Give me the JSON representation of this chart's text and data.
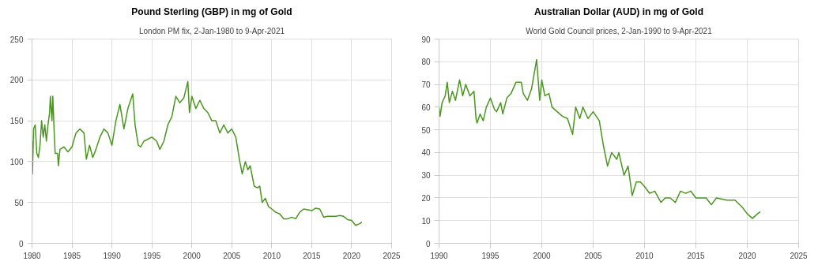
{
  "chart_data": [
    {
      "type": "line",
      "title": "Pound Sterling (GBP) in mg of Gold",
      "subtitle": "London PM fix, 2-Jan-1980 to 9-Apr-2021",
      "xlim": [
        1980,
        2025
      ],
      "xticks": [
        1980,
        1985,
        1990,
        1995,
        2000,
        2005,
        2010,
        2015,
        2020,
        2025
      ],
      "ylim": [
        0,
        250
      ],
      "yticks": [
        0,
        50,
        100,
        150,
        200,
        250
      ],
      "grid": true,
      "series": [
        {
          "color": "#4a961e",
          "x": [
            1980.0,
            1980.05,
            1980.2,
            1980.4,
            1980.6,
            1980.8,
            1981.0,
            1981.2,
            1981.4,
            1981.6,
            1981.8,
            1982.0,
            1982.2,
            1982.3,
            1982.5,
            1982.6,
            1982.8,
            1982.9,
            1983.2,
            1983.3,
            1983.5,
            1984,
            1984.5,
            1985,
            1985.5,
            1986,
            1986.5,
            1986.8,
            1987.2,
            1987.6,
            1988,
            1988.5,
            1989,
            1989.5,
            1990,
            1990.5,
            1991,
            1991.5,
            1992,
            1992.6,
            1992.9,
            1993.3,
            1993.6,
            1994,
            1995,
            1995.6,
            1996,
            1996.5,
            1997,
            1997.5,
            1998,
            1998.5,
            1999,
            1999.5,
            1999.7,
            2000,
            2000.5,
            2001,
            2001.5,
            2002,
            2002.5,
            2003,
            2003.5,
            2004,
            2004.5,
            2005,
            2005.5,
            2006,
            2006.3,
            2006.7,
            2007,
            2007.3,
            2007.8,
            2008.2,
            2008.5,
            2008.8,
            2009.2,
            2009.6,
            2010,
            2010.5,
            2011,
            2011.5,
            2012,
            2012.5,
            2013,
            2013.5,
            2014,
            2014.5,
            2015,
            2015.5,
            2016,
            2016.5,
            2017,
            2018,
            2018.5,
            2019,
            2019.5,
            2020,
            2020.5,
            2021,
            2021.27
          ],
          "values": [
            125,
            85,
            140,
            145,
            110,
            105,
            120,
            150,
            130,
            145,
            125,
            145,
            160,
            180,
            150,
            180,
            130,
            110,
            110,
            95,
            115,
            118,
            112,
            118,
            135,
            140,
            135,
            103,
            120,
            105,
            115,
            130,
            140,
            135,
            120,
            150,
            170,
            140,
            165,
            183,
            145,
            120,
            118,
            125,
            130,
            125,
            115,
            125,
            145,
            155,
            180,
            172,
            178,
            198,
            160,
            180,
            165,
            175,
            165,
            160,
            150,
            150,
            135,
            145,
            135,
            140,
            130,
            100,
            85,
            100,
            90,
            95,
            70,
            68,
            70,
            50,
            55,
            45,
            42,
            38,
            36,
            30,
            30,
            32,
            30,
            38,
            42,
            41,
            40,
            43,
            42,
            32,
            33,
            33,
            34,
            33,
            29,
            28,
            22,
            24,
            26
          ]
        }
      ]
    },
    {
      "type": "line",
      "title": "Australian Dollar (AUD) in mg of Gold",
      "subtitle": "World Gold Council prices, 2-Jan-1990 to 9-Apr-2021",
      "xlim": [
        1990,
        2025
      ],
      "xticks": [
        1990,
        1995,
        2000,
        2005,
        2010,
        2015,
        2020,
        2025
      ],
      "ylim": [
        0,
        90
      ],
      "yticks": [
        0,
        10,
        20,
        30,
        40,
        50,
        60,
        70,
        80,
        90
      ],
      "grid": true,
      "series": [
        {
          "color": "#4a961e",
          "x": [
            1990,
            1990.1,
            1990.3,
            1990.6,
            1990.8,
            1991,
            1991.3,
            1991.6,
            1992,
            1992.3,
            1992.6,
            1993,
            1993.4,
            1993.6,
            1993.7,
            1994,
            1994.3,
            1994.6,
            1995,
            1995.4,
            1995.6,
            1996,
            1996.2,
            1996.6,
            1997,
            1997.5,
            1998,
            1998.2,
            1998.6,
            1999,
            1999.5,
            1999.8,
            2000,
            2000.3,
            2000.7,
            2001,
            2001.5,
            2002,
            2002.5,
            2003,
            2003.3,
            2003.7,
            2004,
            2004.5,
            2005,
            2005.6,
            2006,
            2006.4,
            2006.8,
            2007.3,
            2007.5,
            2008,
            2008.4,
            2008.8,
            2009.2,
            2009.6,
            2010,
            2010.5,
            2011,
            2011.6,
            2012,
            2012.5,
            2013,
            2013.5,
            2014,
            2014.5,
            2015,
            2016,
            2016.5,
            2017,
            2018,
            2018.8,
            2019.5,
            2020,
            2020.5,
            2021,
            2021.27
          ],
          "values": [
            60,
            56,
            62,
            65,
            71,
            62,
            67,
            63,
            72,
            65,
            70,
            65,
            67,
            55,
            53,
            57,
            54,
            60,
            64,
            59,
            58,
            62,
            57,
            64,
            66,
            71,
            71,
            66,
            63,
            68,
            81,
            63,
            72,
            65,
            66,
            60,
            58,
            56,
            55,
            48,
            60,
            55,
            60,
            55,
            58,
            54,
            43,
            34,
            40,
            37,
            40,
            30,
            34,
            21,
            27,
            27,
            25,
            22,
            23,
            18,
            20,
            20,
            18,
            23,
            22,
            23,
            20,
            20,
            17,
            20,
            19,
            19,
            16,
            13,
            11,
            13,
            14
          ]
        }
      ]
    }
  ]
}
